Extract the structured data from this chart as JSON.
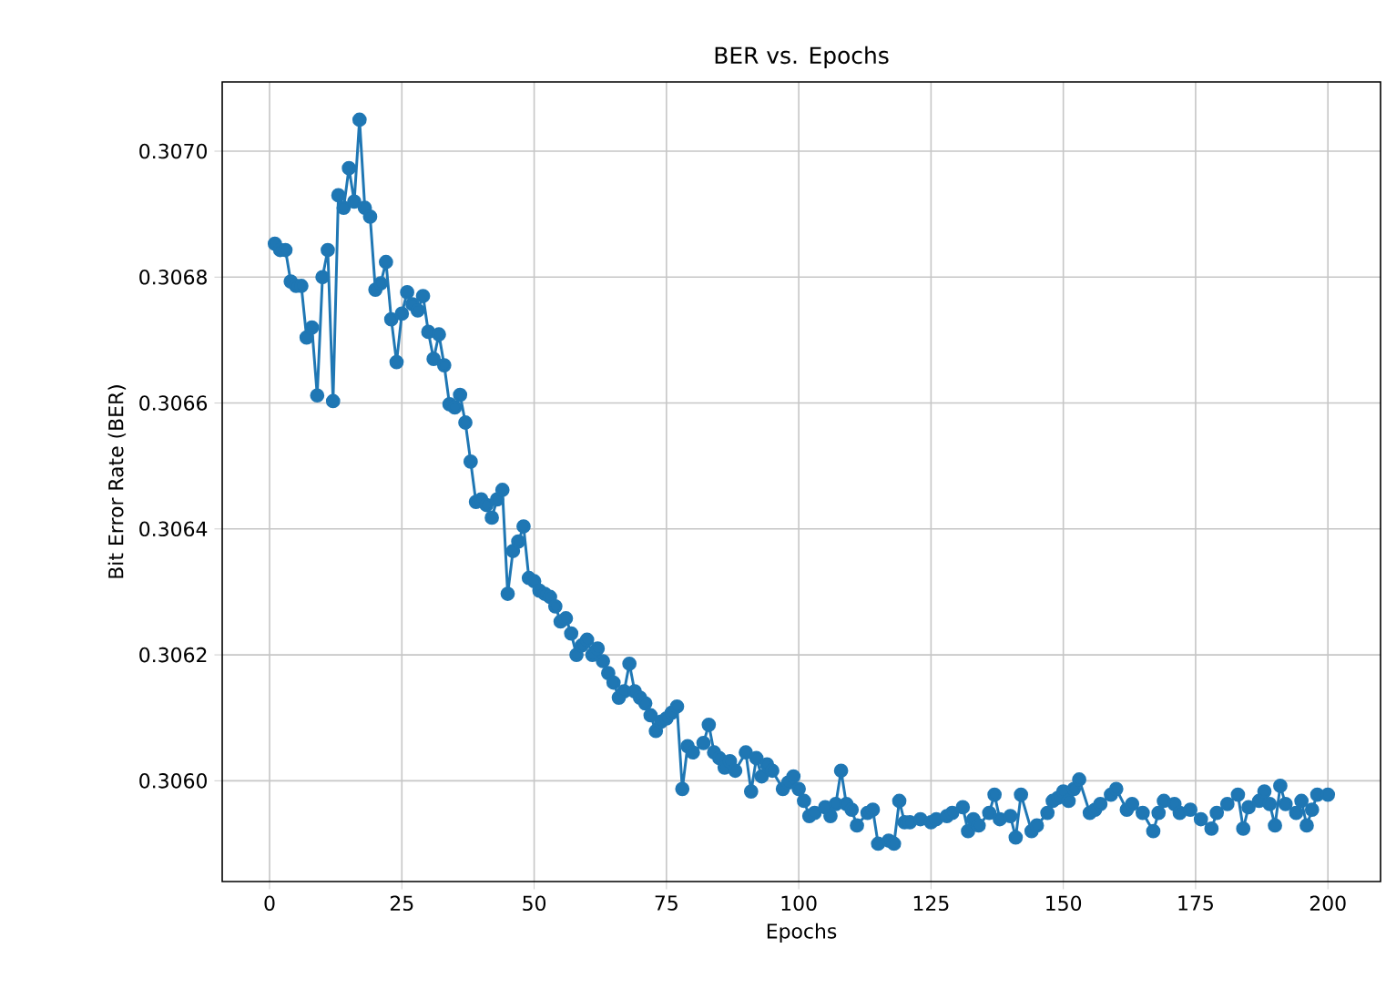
{
  "chart_data": {
    "type": "line",
    "title": "BER vs. Epochs",
    "xlabel": "Epochs",
    "ylabel": "Bit Error Rate (BER)",
    "xlim": [
      -8.95,
      209.95
    ],
    "ylim": [
      0.30584,
      0.30711
    ],
    "xticks": [
      0,
      25,
      50,
      75,
      100,
      125,
      150,
      175,
      200
    ],
    "yticks": [
      {
        "value": 0.306,
        "label": "0.3060"
      },
      {
        "value": 0.3062,
        "label": "0.3062"
      },
      {
        "value": 0.3064,
        "label": "0.3064"
      },
      {
        "value": 0.3066,
        "label": "0.3066"
      },
      {
        "value": 0.3068,
        "label": "0.3068"
      },
      {
        "value": 0.307,
        "label": "0.3070"
      }
    ],
    "grid": true,
    "marker": "circle",
    "line_style": "solid",
    "series": [
      {
        "color": "#1f77b4",
        "x": [
          1,
          2,
          3,
          4,
          5,
          6,
          7,
          8,
          9,
          10,
          11,
          12,
          13,
          14,
          15,
          16,
          17,
          18,
          19,
          20,
          21,
          22,
          23,
          24,
          25,
          26,
          27,
          28,
          29,
          30,
          31,
          32,
          33,
          34,
          35,
          36,
          37,
          38,
          39,
          40,
          41,
          42,
          43,
          44,
          45,
          46,
          47,
          48,
          49,
          50,
          51,
          52,
          53,
          54,
          55,
          56,
          57,
          58,
          59,
          60,
          61,
          62,
          63,
          64,
          65,
          66,
          67,
          68,
          69,
          70,
          71,
          72,
          73,
          74,
          75,
          76,
          77,
          78,
          79,
          80,
          82,
          83,
          84,
          85,
          86,
          87,
          88,
          90,
          91,
          92,
          93,
          94,
          95,
          97,
          98,
          99,
          100,
          101,
          102,
          103,
          105,
          106,
          107,
          108,
          109,
          110,
          111,
          113,
          114,
          115,
          117,
          118,
          119,
          120,
          121,
          123,
          125,
          126,
          128,
          129,
          131,
          132,
          133,
          134,
          136,
          137,
          138,
          140,
          141,
          142,
          144,
          145,
          147,
          148,
          149,
          150,
          151,
          152,
          153,
          155,
          156,
          157,
          159,
          160,
          162,
          163,
          165,
          167,
          168,
          169,
          171,
          172,
          174,
          176,
          178,
          179,
          181,
          183,
          184,
          185,
          187,
          188,
          189,
          190,
          191,
          192,
          194,
          195,
          196,
          197,
          198,
          200
        ],
        "values": [
          0.306853,
          0.306843,
          0.306843,
          0.306793,
          0.306786,
          0.306786,
          0.306704,
          0.30672,
          0.306612,
          0.3068,
          0.306843,
          0.306603,
          0.30693,
          0.30691,
          0.306973,
          0.30692,
          0.30705,
          0.30691,
          0.306896,
          0.30678,
          0.30679,
          0.306824,
          0.306733,
          0.306665,
          0.306742,
          0.306776,
          0.306757,
          0.306747,
          0.30677,
          0.306713,
          0.30667,
          0.306709,
          0.30666,
          0.306598,
          0.306593,
          0.306613,
          0.306569,
          0.306507,
          0.306443,
          0.306447,
          0.306438,
          0.306418,
          0.306447,
          0.306462,
          0.306297,
          0.306365,
          0.30638,
          0.306404,
          0.306322,
          0.306317,
          0.306302,
          0.306297,
          0.306292,
          0.306277,
          0.306253,
          0.306258,
          0.306234,
          0.3062,
          0.306215,
          0.306224,
          0.3062,
          0.30621,
          0.30619,
          0.306171,
          0.306156,
          0.306132,
          0.306142,
          0.306186,
          0.306142,
          0.306132,
          0.306123,
          0.306104,
          0.306079,
          0.306094,
          0.306099,
          0.306108,
          0.306118,
          0.305987,
          0.306055,
          0.306045,
          0.30606,
          0.306089,
          0.306045,
          0.306036,
          0.306021,
          0.306031,
          0.306016,
          0.306045,
          0.305983,
          0.306036,
          0.306007,
          0.306026,
          0.306016,
          0.305987,
          0.305997,
          0.306007,
          0.305987,
          0.305968,
          0.305944,
          0.305949,
          0.305958,
          0.305944,
          0.305963,
          0.306016,
          0.305963,
          0.305954,
          0.305929,
          0.305949,
          0.305954,
          0.3059,
          0.305905,
          0.3059,
          0.305968,
          0.305934,
          0.305934,
          0.305939,
          0.305934,
          0.305939,
          0.305944,
          0.305949,
          0.305958,
          0.30592,
          0.305939,
          0.305929,
          0.305949,
          0.305978,
          0.305939,
          0.305944,
          0.30591,
          0.305978,
          0.30592,
          0.305929,
          0.305949,
          0.305968,
          0.305973,
          0.305983,
          0.305968,
          0.305987,
          0.306002,
          0.305949,
          0.305954,
          0.305963,
          0.305978,
          0.305987,
          0.305954,
          0.305963,
          0.305949,
          0.30592,
          0.305949,
          0.305968,
          0.305963,
          0.305949,
          0.305954,
          0.305939,
          0.305924,
          0.305949,
          0.305963,
          0.305978,
          0.305924,
          0.305958,
          0.305968,
          0.305983,
          0.305963,
          0.305929,
          0.305992,
          0.305963,
          0.305949,
          0.305968,
          0.305929,
          0.305954,
          0.305978,
          0.305978
        ]
      }
    ]
  }
}
